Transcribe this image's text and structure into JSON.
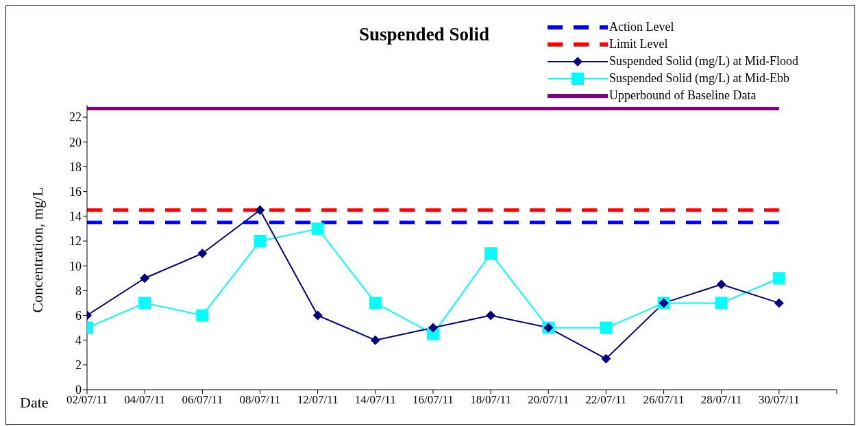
{
  "chart_data": {
    "type": "line",
    "title": "Suspended Solid",
    "xlabel": "Date",
    "ylabel": "Concentration, mg/L",
    "categories": [
      "02/07/11",
      "04/07/11",
      "06/07/11",
      "08/07/11",
      "12/07/11",
      "14/07/11",
      "16/07/11",
      "18/07/11",
      "20/07/11",
      "22/07/11",
      "26/07/11",
      "28/07/11",
      "30/07/11"
    ],
    "series": [
      {
        "name": "Action Level",
        "color": "#0000ff",
        "line_style": "dashed",
        "marker": "none",
        "values": [
          13.5,
          13.5,
          13.5,
          13.5,
          13.5,
          13.5,
          13.5,
          13.5,
          13.5,
          13.5,
          13.5,
          13.5,
          13.5
        ]
      },
      {
        "name": "Limit Level",
        "color": "#ff0000",
        "line_style": "dashed",
        "marker": "none",
        "values": [
          14.5,
          14.5,
          14.5,
          14.5,
          14.5,
          14.5,
          14.5,
          14.5,
          14.5,
          14.5,
          14.5,
          14.5,
          14.5
        ]
      },
      {
        "name": "Suspended Solid (mg/L) at Mid-Flood",
        "color": "#000080",
        "line_style": "solid",
        "marker": "diamond",
        "values": [
          6,
          9,
          11,
          14.5,
          6,
          4,
          5,
          6,
          5,
          2.5,
          7,
          8.5,
          7
        ]
      },
      {
        "name": "Suspended Solid (mg/L) at Mid-Ebb",
        "color": "#00ffff",
        "line_style": "solid",
        "marker": "square",
        "values": [
          5,
          7,
          6,
          12,
          13,
          7,
          4.5,
          11,
          5,
          5,
          7,
          7,
          9
        ]
      },
      {
        "name": "Upperbound of Baseline Data",
        "color": "#800080",
        "line_style": "solid",
        "marker": "none",
        "values": [
          22.7,
          22.7,
          22.7,
          22.7,
          22.7,
          22.7,
          22.7,
          22.7,
          22.7,
          22.7,
          22.7,
          22.7,
          22.7
        ]
      }
    ],
    "ylim": [
      0,
      23
    ],
    "yticks": [
      0,
      2,
      4,
      6,
      8,
      10,
      12,
      14,
      16,
      18,
      20,
      22
    ],
    "grid": false,
    "legend": "top right"
  }
}
